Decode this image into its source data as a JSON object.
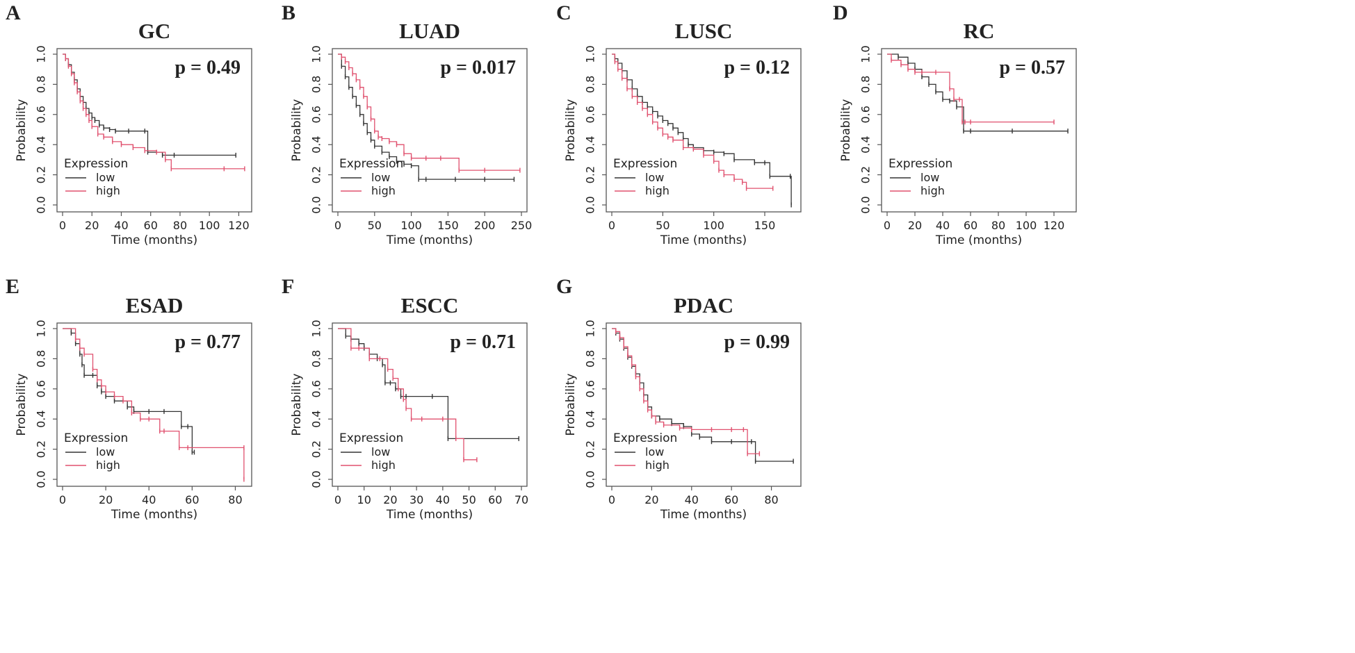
{
  "colors": {
    "low": "#333333",
    "high": "#e0506e"
  },
  "chart_data": [
    {
      "type": "line",
      "letter": "A",
      "title": "GC",
      "pvalue": "p = 0.49",
      "xlabel": "Time (months)",
      "ylabel": "Probability",
      "xlim": [
        0,
        125
      ],
      "ylim": [
        0,
        1
      ],
      "xticks": [
        0,
        20,
        40,
        60,
        80,
        100,
        120
      ],
      "yticks": [
        "0.0",
        "0.2",
        "0.4",
        "0.6",
        "0.8",
        "1.0"
      ],
      "legend": {
        "title": "Expression",
        "position": "bottom-left",
        "items": [
          "low",
          "high"
        ]
      },
      "series": [
        {
          "name": "low",
          "x": [
            0,
            2,
            4,
            6,
            8,
            10,
            12,
            14,
            16,
            18,
            20,
            22,
            25,
            28,
            32,
            36,
            45,
            56,
            58,
            68,
            76,
            118
          ],
          "y": [
            1.0,
            0.97,
            0.93,
            0.88,
            0.83,
            0.77,
            0.72,
            0.68,
            0.64,
            0.61,
            0.58,
            0.56,
            0.53,
            0.51,
            0.5,
            0.49,
            0.49,
            0.49,
            0.35,
            0.33,
            0.33,
            0.33
          ]
        },
        {
          "name": "high",
          "x": [
            0,
            2,
            4,
            6,
            8,
            10,
            12,
            14,
            16,
            18,
            20,
            24,
            28,
            34,
            40,
            48,
            56,
            64,
            70,
            74,
            110,
            124
          ],
          "y": [
            1.0,
            0.97,
            0.92,
            0.87,
            0.81,
            0.75,
            0.69,
            0.64,
            0.6,
            0.56,
            0.52,
            0.47,
            0.45,
            0.42,
            0.4,
            0.38,
            0.36,
            0.35,
            0.3,
            0.24,
            0.24,
            0.24
          ]
        }
      ]
    },
    {
      "type": "line",
      "letter": "B",
      "title": "LUAD",
      "pvalue": "p = 0.017",
      "xlabel": "Time (months)",
      "ylabel": "Probability",
      "xlim": [
        0,
        250
      ],
      "ylim": [
        0,
        1
      ],
      "xticks": [
        0,
        50,
        100,
        150,
        200,
        250
      ],
      "yticks": [
        "0.0",
        "0.2",
        "0.4",
        "0.6",
        "0.8",
        "1.0"
      ],
      "legend": {
        "title": "Expression",
        "position": "bottom-left",
        "items": [
          "low",
          "high"
        ]
      },
      "series": [
        {
          "name": "low",
          "x": [
            0,
            5,
            10,
            15,
            20,
            25,
            30,
            35,
            40,
            45,
            50,
            60,
            70,
            80,
            90,
            100,
            110,
            120,
            160,
            200,
            240
          ],
          "y": [
            1.0,
            0.92,
            0.85,
            0.78,
            0.72,
            0.66,
            0.6,
            0.54,
            0.48,
            0.43,
            0.39,
            0.35,
            0.32,
            0.29,
            0.27,
            0.26,
            0.17,
            0.17,
            0.17,
            0.17,
            0.17
          ]
        },
        {
          "name": "high",
          "x": [
            0,
            5,
            10,
            15,
            20,
            25,
            30,
            35,
            40,
            45,
            50,
            55,
            60,
            70,
            80,
            90,
            100,
            120,
            140,
            165,
            200,
            248
          ],
          "y": [
            1.0,
            0.98,
            0.95,
            0.91,
            0.87,
            0.83,
            0.78,
            0.72,
            0.65,
            0.57,
            0.49,
            0.45,
            0.44,
            0.42,
            0.4,
            0.34,
            0.31,
            0.31,
            0.31,
            0.23,
            0.23,
            0.23
          ]
        }
      ]
    },
    {
      "type": "line",
      "letter": "C",
      "title": "LUSC",
      "pvalue": "p = 0.12",
      "xlabel": "Time (months)",
      "ylabel": "Probability",
      "xlim": [
        0,
        180
      ],
      "ylim": [
        0,
        1
      ],
      "xticks": [
        0,
        50,
        100,
        150
      ],
      "yticks": [
        "0.0",
        "0.2",
        "0.4",
        "0.6",
        "0.8",
        "1.0"
      ],
      "legend": {
        "title": "Expression",
        "position": "bottom-left",
        "items": [
          "low",
          "high"
        ]
      },
      "series": [
        {
          "name": "low",
          "x": [
            0,
            3,
            6,
            10,
            15,
            20,
            25,
            30,
            35,
            40,
            45,
            50,
            55,
            60,
            65,
            70,
            75,
            80,
            90,
            100,
            110,
            120,
            140,
            150,
            155,
            175,
            176
          ],
          "y": [
            1.0,
            0.97,
            0.94,
            0.89,
            0.83,
            0.77,
            0.72,
            0.68,
            0.65,
            0.62,
            0.59,
            0.56,
            0.54,
            0.51,
            0.48,
            0.44,
            0.4,
            0.38,
            0.36,
            0.35,
            0.34,
            0.3,
            0.28,
            0.28,
            0.19,
            0.19,
            0.0
          ]
        },
        {
          "name": "high",
          "x": [
            0,
            3,
            6,
            10,
            15,
            20,
            25,
            30,
            35,
            40,
            45,
            50,
            55,
            60,
            70,
            80,
            90,
            100,
            105,
            110,
            120,
            128,
            132,
            158
          ],
          "y": [
            1.0,
            0.95,
            0.9,
            0.84,
            0.77,
            0.72,
            0.68,
            0.64,
            0.6,
            0.55,
            0.51,
            0.47,
            0.45,
            0.43,
            0.38,
            0.37,
            0.33,
            0.29,
            0.23,
            0.2,
            0.17,
            0.15,
            0.11,
            0.11
          ]
        }
      ]
    },
    {
      "type": "line",
      "letter": "D",
      "title": "RC",
      "pvalue": "p = 0.57",
      "xlabel": "Time (months)",
      "ylabel": "Probability",
      "xlim": [
        0,
        132
      ],
      "ylim": [
        0,
        1
      ],
      "xticks": [
        0,
        20,
        40,
        60,
        80,
        100,
        120
      ],
      "yticks": [
        "0.0",
        "0.2",
        "0.4",
        "0.6",
        "0.8",
        "1.0"
      ],
      "legend": {
        "title": "Expression",
        "position": "bottom-left",
        "items": [
          "low",
          "high"
        ]
      },
      "series": [
        {
          "name": "low",
          "x": [
            0,
            8,
            15,
            20,
            25,
            30,
            35,
            40,
            45,
            50,
            55,
            60,
            90,
            130
          ],
          "y": [
            1.0,
            0.98,
            0.94,
            0.9,
            0.85,
            0.8,
            0.75,
            0.7,
            0.69,
            0.65,
            0.49,
            0.49,
            0.49,
            0.49
          ]
        },
        {
          "name": "high",
          "x": [
            0,
            3,
            10,
            15,
            20,
            25,
            35,
            45,
            48,
            52,
            54,
            56,
            60,
            120
          ],
          "y": [
            1.0,
            0.96,
            0.93,
            0.9,
            0.88,
            0.88,
            0.88,
            0.77,
            0.7,
            0.7,
            0.55,
            0.55,
            0.55,
            0.55
          ]
        }
      ]
    },
    {
      "type": "line",
      "letter": "E",
      "title": "ESAD",
      "pvalue": "p = 0.77",
      "xlabel": "Time (months)",
      "ylabel": "Probability",
      "xlim": [
        0,
        85
      ],
      "ylim": [
        0,
        1
      ],
      "xticks": [
        0,
        20,
        40,
        60,
        80
      ],
      "yticks": [
        "0.0",
        "0.2",
        "0.4",
        "0.6",
        "0.8",
        "1.0"
      ],
      "legend": {
        "title": "Expression",
        "position": "bottom-left",
        "items": [
          "low",
          "high"
        ]
      },
      "series": [
        {
          "name": "low",
          "x": [
            0,
            4,
            6,
            8,
            9,
            10,
            14,
            16,
            18,
            20,
            24,
            30,
            33,
            40,
            47,
            55,
            58,
            60,
            61
          ],
          "y": [
            1.0,
            0.97,
            0.9,
            0.83,
            0.76,
            0.69,
            0.69,
            0.62,
            0.58,
            0.55,
            0.52,
            0.48,
            0.45,
            0.45,
            0.45,
            0.35,
            0.35,
            0.18,
            0.18
          ]
        },
        {
          "name": "high",
          "x": [
            0,
            6,
            8,
            10,
            14,
            16,
            18,
            20,
            24,
            28,
            32,
            36,
            40,
            45,
            47,
            54,
            58,
            84,
            84
          ],
          "y": [
            1.0,
            0.93,
            0.87,
            0.83,
            0.73,
            0.66,
            0.62,
            0.58,
            0.55,
            0.52,
            0.44,
            0.4,
            0.4,
            0.32,
            0.32,
            0.21,
            0.21,
            0.21,
            0.0
          ]
        }
      ]
    },
    {
      "type": "line",
      "letter": "F",
      "title": "ESCC",
      "pvalue": "p = 0.71",
      "xlabel": "Time (months)",
      "ylabel": "Probability",
      "xlim": [
        0,
        70
      ],
      "ylim": [
        0,
        1
      ],
      "xticks": [
        0,
        10,
        20,
        30,
        40,
        50,
        60,
        70
      ],
      "yticks": [
        "0.0",
        "0.2",
        "0.4",
        "0.6",
        "0.8",
        "1.0"
      ],
      "legend": {
        "title": "Expression",
        "position": "bottom-left",
        "items": [
          "low",
          "high"
        ]
      },
      "series": [
        {
          "name": "low",
          "x": [
            0,
            3,
            5,
            8,
            10,
            12,
            15,
            17,
            18,
            20,
            22,
            24,
            26,
            36,
            42,
            69
          ],
          "y": [
            1.0,
            0.95,
            0.93,
            0.9,
            0.87,
            0.83,
            0.8,
            0.76,
            0.64,
            0.64,
            0.6,
            0.55,
            0.55,
            0.55,
            0.27,
            0.27
          ]
        },
        {
          "name": "high",
          "x": [
            0,
            5,
            8,
            12,
            16,
            19,
            21,
            23,
            25,
            26,
            28,
            32,
            40,
            45,
            48,
            53
          ],
          "y": [
            1.0,
            0.87,
            0.87,
            0.8,
            0.8,
            0.73,
            0.67,
            0.6,
            0.53,
            0.47,
            0.4,
            0.4,
            0.4,
            0.27,
            0.13,
            0.13
          ]
        }
      ]
    },
    {
      "type": "line",
      "letter": "G",
      "title": "PDAC",
      "pvalue": "p = 0.99",
      "xlabel": "Time (months)",
      "ylabel": "Probability",
      "xlim": [
        0,
        92
      ],
      "ylim": [
        0,
        1
      ],
      "xticks": [
        0,
        20,
        40,
        60,
        80
      ],
      "yticks": [
        "0.0",
        "0.2",
        "0.4",
        "0.6",
        "0.8",
        "1.0"
      ],
      "legend": {
        "title": "Expression",
        "position": "bottom-left",
        "items": [
          "low",
          "high"
        ]
      },
      "series": [
        {
          "name": "low",
          "x": [
            0,
            2,
            4,
            6,
            8,
            10,
            12,
            14,
            16,
            18,
            20,
            24,
            30,
            36,
            40,
            44,
            50,
            60,
            70,
            72,
            91
          ],
          "y": [
            1.0,
            0.97,
            0.93,
            0.87,
            0.81,
            0.75,
            0.7,
            0.64,
            0.56,
            0.48,
            0.42,
            0.4,
            0.37,
            0.35,
            0.3,
            0.28,
            0.25,
            0.25,
            0.25,
            0.12,
            0.12
          ]
        },
        {
          "name": "high",
          "x": [
            0,
            2,
            4,
            6,
            8,
            10,
            12,
            14,
            16,
            18,
            20,
            22,
            26,
            34,
            40,
            50,
            60,
            66,
            68,
            74
          ],
          "y": [
            1.0,
            0.98,
            0.94,
            0.88,
            0.82,
            0.76,
            0.68,
            0.6,
            0.52,
            0.46,
            0.42,
            0.38,
            0.36,
            0.34,
            0.33,
            0.33,
            0.33,
            0.33,
            0.17,
            0.17
          ]
        }
      ]
    }
  ]
}
